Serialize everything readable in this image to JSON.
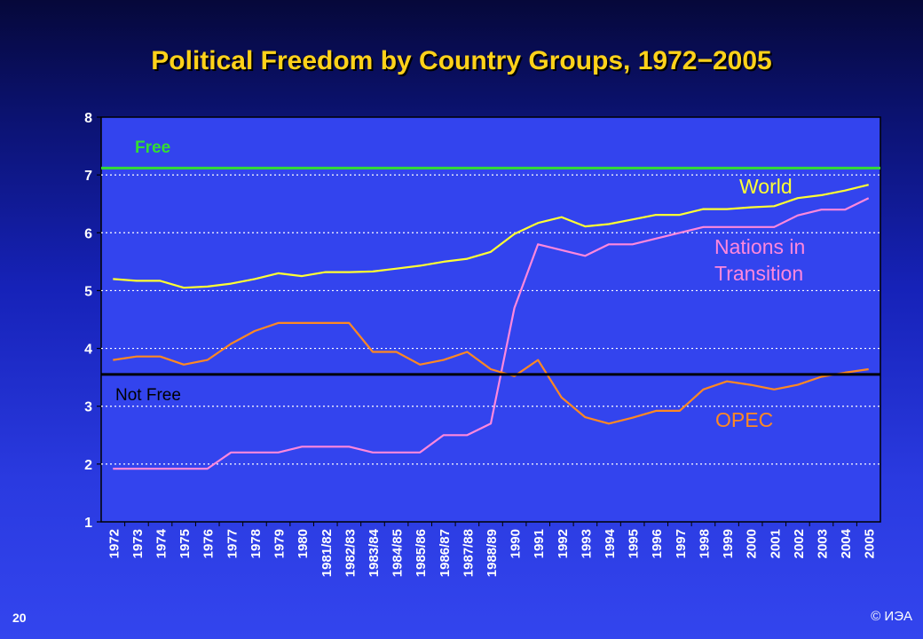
{
  "slide": {
    "page_number": "20",
    "copyright": "© ИЭА"
  },
  "chart_data": {
    "type": "line",
    "title": "Political Freedom by Country Groups, 1972−2005",
    "xlabel": "",
    "ylabel": "",
    "ylim": [
      1,
      8
    ],
    "yticks": [
      1,
      2,
      3,
      4,
      5,
      6,
      7,
      8
    ],
    "grid": true,
    "categories": [
      "1972",
      "1973",
      "1974",
      "1975",
      "1976",
      "1977",
      "1978",
      "1979",
      "1980",
      "1981/82",
      "1982/83",
      "1983/84",
      "1984/85",
      "1985/86",
      "1986/87",
      "1987/88",
      "1988/89",
      "1990",
      "1991",
      "1992",
      "1993",
      "1994",
      "1995",
      "1996",
      "1997",
      "1998",
      "1999",
      "2000",
      "2001",
      "2002",
      "2003",
      "2004",
      "2005"
    ],
    "reference_lines": [
      {
        "label": "Free",
        "value": 7.12,
        "color": "#33dd33"
      },
      {
        "label": "Not Free",
        "value": 3.55,
        "color": "#000000"
      }
    ],
    "series": [
      {
        "name": "World",
        "color": "#ffff33",
        "label_lines": [
          "World"
        ],
        "values": [
          5.2,
          5.17,
          5.17,
          5.05,
          5.07,
          5.12,
          5.2,
          5.3,
          5.25,
          5.32,
          5.32,
          5.33,
          5.38,
          5.43,
          5.5,
          5.55,
          5.67,
          5.98,
          6.17,
          6.27,
          6.11,
          6.15,
          6.23,
          6.31,
          6.31,
          6.41,
          6.41,
          6.44,
          6.46,
          6.6,
          6.65,
          6.73,
          6.83
        ]
      },
      {
        "name": "Nations in Transition",
        "color": "#ff88dd",
        "label_lines": [
          "Nations in",
          "Transition"
        ],
        "values": [
          1.92,
          1.92,
          1.92,
          1.92,
          1.92,
          2.2,
          2.2,
          2.2,
          2.3,
          2.3,
          2.3,
          2.2,
          2.2,
          2.2,
          2.5,
          2.5,
          2.7,
          4.7,
          5.8,
          5.7,
          5.6,
          5.8,
          5.8,
          5.9,
          6.0,
          6.1,
          6.1,
          6.1,
          6.1,
          6.3,
          6.4,
          6.4,
          6.6
        ]
      },
      {
        "name": "OPEC",
        "color": "#ff8822",
        "label_lines": [
          "OPEC"
        ],
        "values": [
          3.8,
          3.86,
          3.86,
          3.72,
          3.8,
          4.08,
          4.3,
          4.44,
          4.44,
          4.44,
          4.44,
          3.94,
          3.94,
          3.72,
          3.8,
          3.94,
          3.64,
          3.52,
          3.8,
          3.15,
          2.81,
          2.7,
          2.8,
          2.92,
          2.92,
          3.29,
          3.43,
          3.37,
          3.29,
          3.37,
          3.51,
          3.58,
          3.64
        ]
      }
    ]
  }
}
